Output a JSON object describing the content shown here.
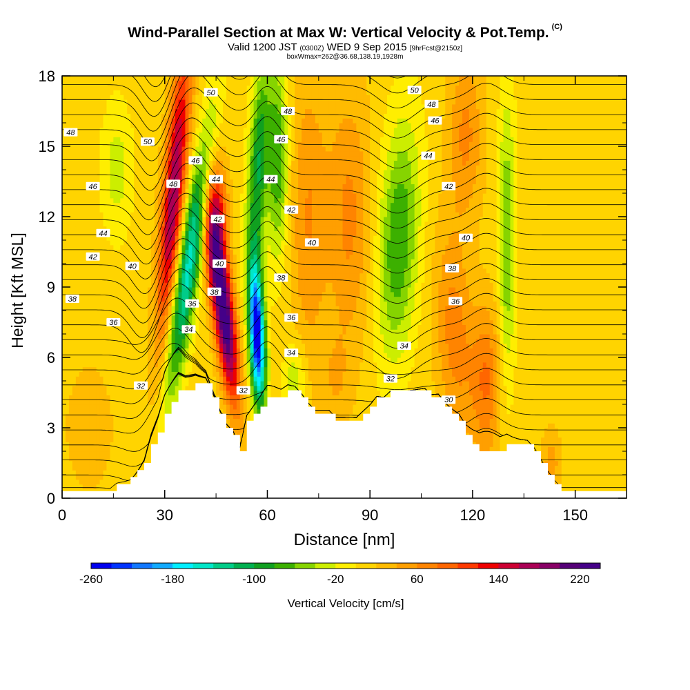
{
  "header": {
    "title": "Wind-Parallel Section at Max W: Vertical Velocity & Pot.Temp.",
    "copyright": "(C)",
    "subtitle_part1": "Valid 1200 JST",
    "subtitle_part2": "(0300Z)",
    "subtitle_part3": "WED 9 Sep 2015",
    "subtitle_part4": "[9hrFcst@2150z]",
    "subtitle2": "boxWmax=262@36.68,138.19,1928m"
  },
  "chart_data": {
    "type": "heatmap",
    "title": "Wind-Parallel Section at Max W: Vertical Velocity & Pot.Temp.",
    "xlabel": "Distance [nm]",
    "ylabel": "Height [Kft MSL]",
    "xlim": [
      0,
      165
    ],
    "ylim": [
      0,
      18
    ],
    "xticks": [
      0,
      30,
      60,
      90,
      120,
      150
    ],
    "yticks": [
      0,
      3,
      6,
      9,
      12,
      15,
      18
    ],
    "colorbar": {
      "label": "Vertical Velocity [cm/s]",
      "min": -260,
      "max": 240,
      "step": 20,
      "tick_labels": [
        -260,
        -180,
        -100,
        -20,
        60,
        140,
        220
      ],
      "colors": [
        "#0000ee",
        "#0033ff",
        "#1177ff",
        "#11aaff",
        "#00eeff",
        "#00e6c8",
        "#00cc88",
        "#00b050",
        "#10a020",
        "#3cb000",
        "#86d400",
        "#ccee00",
        "#ffee00",
        "#ffd400",
        "#ffbb00",
        "#ff9f00",
        "#ff8400",
        "#ff6600",
        "#ff3a00",
        "#ee0000",
        "#cc0033",
        "#aa0055",
        "#880066",
        "#550077",
        "#440088"
      ]
    },
    "terrain_kft": {
      "x": [
        0,
        14,
        16,
        20,
        22,
        24,
        26,
        28,
        30,
        32,
        34,
        36,
        39,
        42,
        44,
        46,
        48,
        50,
        52,
        54,
        56,
        58,
        60,
        62,
        64,
        66,
        68,
        70,
        72,
        74,
        76,
        78,
        80,
        82,
        84,
        86,
        88,
        90,
        92,
        94,
        96,
        98,
        100,
        102,
        104,
        106,
        108,
        110,
        112,
        114,
        116,
        118,
        120,
        122,
        124,
        126,
        128,
        130,
        132,
        134,
        136,
        138,
        140,
        142,
        144,
        146,
        148,
        150,
        152,
        165
      ],
      "h": [
        0.3,
        0.3,
        0.6,
        0.9,
        1.2,
        1.5,
        2.3,
        2.8,
        3.6,
        4.1,
        4.6,
        4.6,
        4.9,
        4.9,
        4.3,
        3.6,
        3.0,
        2.7,
        2.0,
        3.3,
        3.6,
        3.9,
        4.3,
        4.3,
        4.3,
        4.6,
        4.6,
        4.3,
        3.9,
        3.6,
        3.6,
        3.6,
        3.3,
        3.3,
        3.3,
        3.3,
        3.6,
        3.9,
        4.3,
        4.3,
        4.6,
        4.6,
        4.6,
        4.6,
        4.6,
        4.6,
        4.3,
        4.3,
        3.9,
        3.6,
        3.3,
        2.7,
        2.3,
        2.0,
        2.0,
        2.0,
        2.0,
        2.3,
        2.3,
        2.3,
        2.3,
        2.0,
        1.5,
        1.0,
        0.6,
        0.3,
        0.3,
        0.3,
        0.3,
        0.3
      ]
    },
    "potential_temperature_label_values": [
      30,
      32,
      34,
      36,
      38,
      40,
      42,
      44,
      46,
      48,
      50
    ],
    "vertical_velocity_features": [
      {
        "sign": "up",
        "description_label": "max",
        "x": 50,
        "y": 8.0,
        "value": 240
      },
      {
        "sign": "down",
        "x": 58,
        "y": 7.0,
        "value": -260
      },
      {
        "sign": "up",
        "x": 31,
        "y": 13.5,
        "value": 170
      },
      {
        "sign": "down",
        "x": 38,
        "y": 12.0,
        "value": -150
      },
      {
        "sign": "down",
        "x": 100,
        "y": 11.0,
        "value": -70
      },
      {
        "sign": "up",
        "x": 112,
        "y": 7.0,
        "value": 60
      },
      {
        "sign": "up",
        "x": 125,
        "y": 6.0,
        "value": 70
      }
    ],
    "contour_labels": [
      {
        "text": "48",
        "x": 2.5,
        "y": 15.6
      },
      {
        "text": "46",
        "x": 9,
        "y": 13.3
      },
      {
        "text": "44",
        "x": 12,
        "y": 11.3
      },
      {
        "text": "42",
        "x": 9,
        "y": 10.3
      },
      {
        "text": "40",
        "x": 20.5,
        "y": 9.9
      },
      {
        "text": "38",
        "x": 3,
        "y": 8.5
      },
      {
        "text": "36",
        "x": 15,
        "y": 7.5
      },
      {
        "text": "34",
        "x": 37,
        "y": 7.2
      },
      {
        "text": "32",
        "x": 23,
        "y": 4.8
      },
      {
        "text": "36",
        "x": 38,
        "y": 8.3
      },
      {
        "text": "50",
        "x": 25,
        "y": 15.2
      },
      {
        "text": "48",
        "x": 32.5,
        "y": 13.4
      },
      {
        "text": "46",
        "x": 39,
        "y": 14.4
      },
      {
        "text": "44",
        "x": 45,
        "y": 13.6
      },
      {
        "text": "42",
        "x": 45.5,
        "y": 11.9
      },
      {
        "text": "40",
        "x": 46,
        "y": 10.0
      },
      {
        "text": "38",
        "x": 44.5,
        "y": 8.8
      },
      {
        "text": "50",
        "x": 43.5,
        "y": 17.3
      },
      {
        "text": "32",
        "x": 53,
        "y": 4.6
      },
      {
        "text": "48",
        "x": 66,
        "y": 16.5
      },
      {
        "text": "46",
        "x": 64,
        "y": 15.3
      },
      {
        "text": "44",
        "x": 61,
        "y": 13.6
      },
      {
        "text": "42",
        "x": 67,
        "y": 12.3
      },
      {
        "text": "40",
        "x": 73,
        "y": 10.9
      },
      {
        "text": "38",
        "x": 64,
        "y": 9.4
      },
      {
        "text": "36",
        "x": 67,
        "y": 7.7
      },
      {
        "text": "34",
        "x": 67,
        "y": 6.2
      },
      {
        "text": "50",
        "x": 103,
        "y": 17.4
      },
      {
        "text": "48",
        "x": 108,
        "y": 16.8
      },
      {
        "text": "46",
        "x": 109,
        "y": 16.1
      },
      {
        "text": "44",
        "x": 107,
        "y": 14.6
      },
      {
        "text": "42",
        "x": 113,
        "y": 13.3
      },
      {
        "text": "40",
        "x": 118,
        "y": 11.1
      },
      {
        "text": "38",
        "x": 114,
        "y": 9.8
      },
      {
        "text": "36",
        "x": 115,
        "y": 8.4
      },
      {
        "text": "34",
        "x": 100,
        "y": 6.5
      },
      {
        "text": "32",
        "x": 96,
        "y": 5.1
      },
      {
        "text": "30",
        "x": 113,
        "y": 4.2
      }
    ]
  }
}
